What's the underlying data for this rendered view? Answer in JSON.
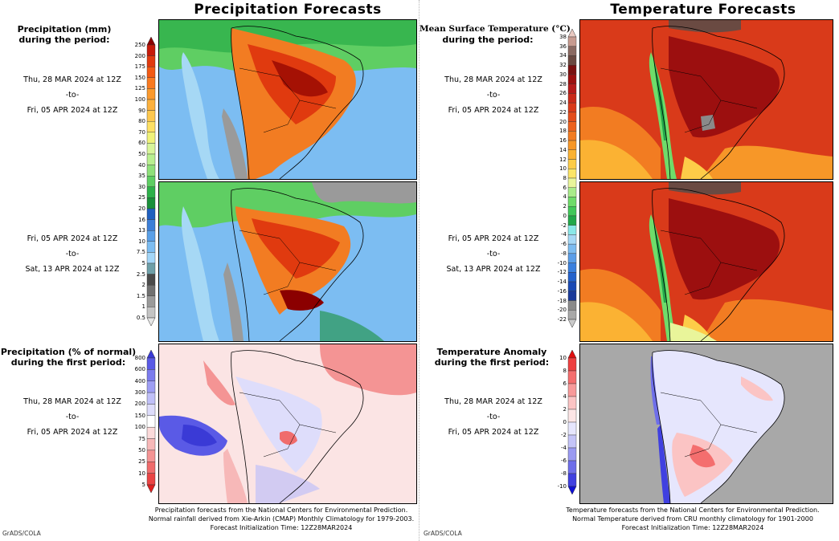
{
  "header": {
    "precip_title": "Precipitation Forecasts",
    "temp_title": "Temperature Forecasts"
  },
  "panels": {
    "precip_p1": {
      "label_line1": "Precipitation (mm)",
      "label_line2": "during the period:",
      "date_start": "Thu, 28 MAR 2024 at 12Z",
      "date_to": "-to-",
      "date_end": "Fri, 05 APR 2024 at 12Z"
    },
    "precip_p2": {
      "date_start": "Fri, 05 APR 2024 at 12Z",
      "date_to": "-to-",
      "date_end": "Sat, 13 APR 2024 at 12Z"
    },
    "precip_anom": {
      "label_line1": "Precipitation (% of normal)",
      "label_line2": "during the first period:",
      "date_start": "Thu, 28 MAR 2024 at 12Z",
      "date_to": "-to-",
      "date_end": "Fri, 05 APR 2024 at 12Z"
    },
    "temp_p1": {
      "label_line1": "Mean Surface Temperature (°C)",
      "label_line2": "during the period:",
      "date_start": "Thu, 28 MAR 2024 at 12Z",
      "date_to": "-to-",
      "date_end": "Fri, 05 APR 2024 at 12Z"
    },
    "temp_p2": {
      "date_start": "Fri, 05 APR 2024 at 12Z",
      "date_to": "-to-",
      "date_end": "Sat, 13 APR 2024 at 12Z"
    },
    "temp_anom": {
      "label_line1": "Temperature Anomaly",
      "label_line2": "during the first period:",
      "date_start": "Thu, 28 MAR 2024 at 12Z",
      "date_to": "-to-",
      "date_end": "Fri, 05 APR 2024 at 12Z"
    }
  },
  "colorbars": {
    "precip": {
      "ticks": [
        "250",
        "200",
        "175",
        "150",
        "125",
        "100",
        "90",
        "80",
        "70",
        "60",
        "50",
        "40",
        "35",
        "30",
        "25",
        "20",
        "16",
        "13",
        "10",
        "7.5",
        "5",
        "2.5",
        "2",
        "1.5",
        "1",
        "0.5"
      ],
      "colors": [
        "#8b0000",
        "#c61a09",
        "#e03a0f",
        "#f25a14",
        "#f97a21",
        "#fb9a2e",
        "#fbb13e",
        "#fcc84f",
        "#fde064",
        "#eff27a",
        "#d8f59a",
        "#b9ef90",
        "#8fe07a",
        "#5fce63",
        "#2eb04a",
        "#1a8f3a",
        "#1f5fbf",
        "#3c7fd8",
        "#5aa0e8",
        "#7cbdf2",
        "#a3d6f8",
        "#6e9fa8",
        "#4a4a4a",
        "#707070",
        "#9a9a9a",
        "#c4c4c4",
        "#e6e6e6"
      ]
    },
    "precip_anom": {
      "ticks": [
        "800",
        "600",
        "400",
        "300",
        "200",
        "150",
        "100",
        "75",
        "50",
        "25",
        "10",
        "5"
      ],
      "colors": [
        "#3a3ad6",
        "#5a5ae6",
        "#7c7cee",
        "#9e9ef4",
        "#c0c0f8",
        "#deddfb",
        "#ffffff",
        "#fbdada",
        "#f7b8b8",
        "#f49494",
        "#f06c6c",
        "#ea4545",
        "#e02020"
      ]
    },
    "temp": {
      "ticks": [
        "38",
        "36",
        "34",
        "32",
        "30",
        "28",
        "26",
        "24",
        "22",
        "20",
        "18",
        "16",
        "14",
        "12",
        "10",
        "8",
        "6",
        "4",
        "2",
        "0",
        "-2",
        "-4",
        "-6",
        "-8",
        "-10",
        "-12",
        "-14",
        "-16",
        "-18",
        "-20",
        "-22"
      ],
      "colors": [
        "#e8c8c0",
        "#c79b90",
        "#8a6a62",
        "#6a4a42",
        "#7a1010",
        "#9c0f0f",
        "#b51a1a",
        "#c92a1a",
        "#d93a1a",
        "#e34d1c",
        "#ec621f",
        "#f27c22",
        "#f79728",
        "#fbb233",
        "#fdcc48",
        "#fce567",
        "#e9f59a",
        "#a9ec8a",
        "#6fdc6a",
        "#42c85a",
        "#22a84a",
        "#8ae8e8",
        "#a6d8f5",
        "#7cbcf0",
        "#5a9ee8",
        "#3a80de",
        "#2462cc",
        "#1a4ab5",
        "#1a3a9a",
        "#8a8a8a",
        "#a8a8a8",
        "#cacaca"
      ]
    },
    "temp_anom": {
      "ticks": [
        "10",
        "8",
        "6",
        "4",
        "2",
        "0",
        "-2",
        "-4",
        "-6",
        "-8",
        "-10"
      ],
      "colors": [
        "#e01010",
        "#ee4040",
        "#f46e6e",
        "#f89a9a",
        "#fbc4c4",
        "#fde6e6",
        "#e6e6fd",
        "#c4c4f8",
        "#9a9af2",
        "#6e6eea",
        "#4040e0",
        "#1010d6"
      ]
    }
  },
  "footer": {
    "precip_line1": "Precipitation forecasts from the National Centers for Environmental Prediction.",
    "precip_line2": "Normal rainfall derived from Xie-Arkin (CMAP) Monthly Climatology for 1979-2003.",
    "precip_line3": "Forecast Initialization Time: 12Z28MAR2024",
    "temp_line1": "Temperature forecasts from the National Centers for Environmental Prediction.",
    "temp_line2": "Normal Temperature derived from CRU monthly climatology for 1901-2000",
    "temp_line3": "Forecast Initialization Time: 12Z28MAR2024",
    "brand_left": "GrADS/COLA",
    "brand_right": "GrADS/COLA"
  }
}
